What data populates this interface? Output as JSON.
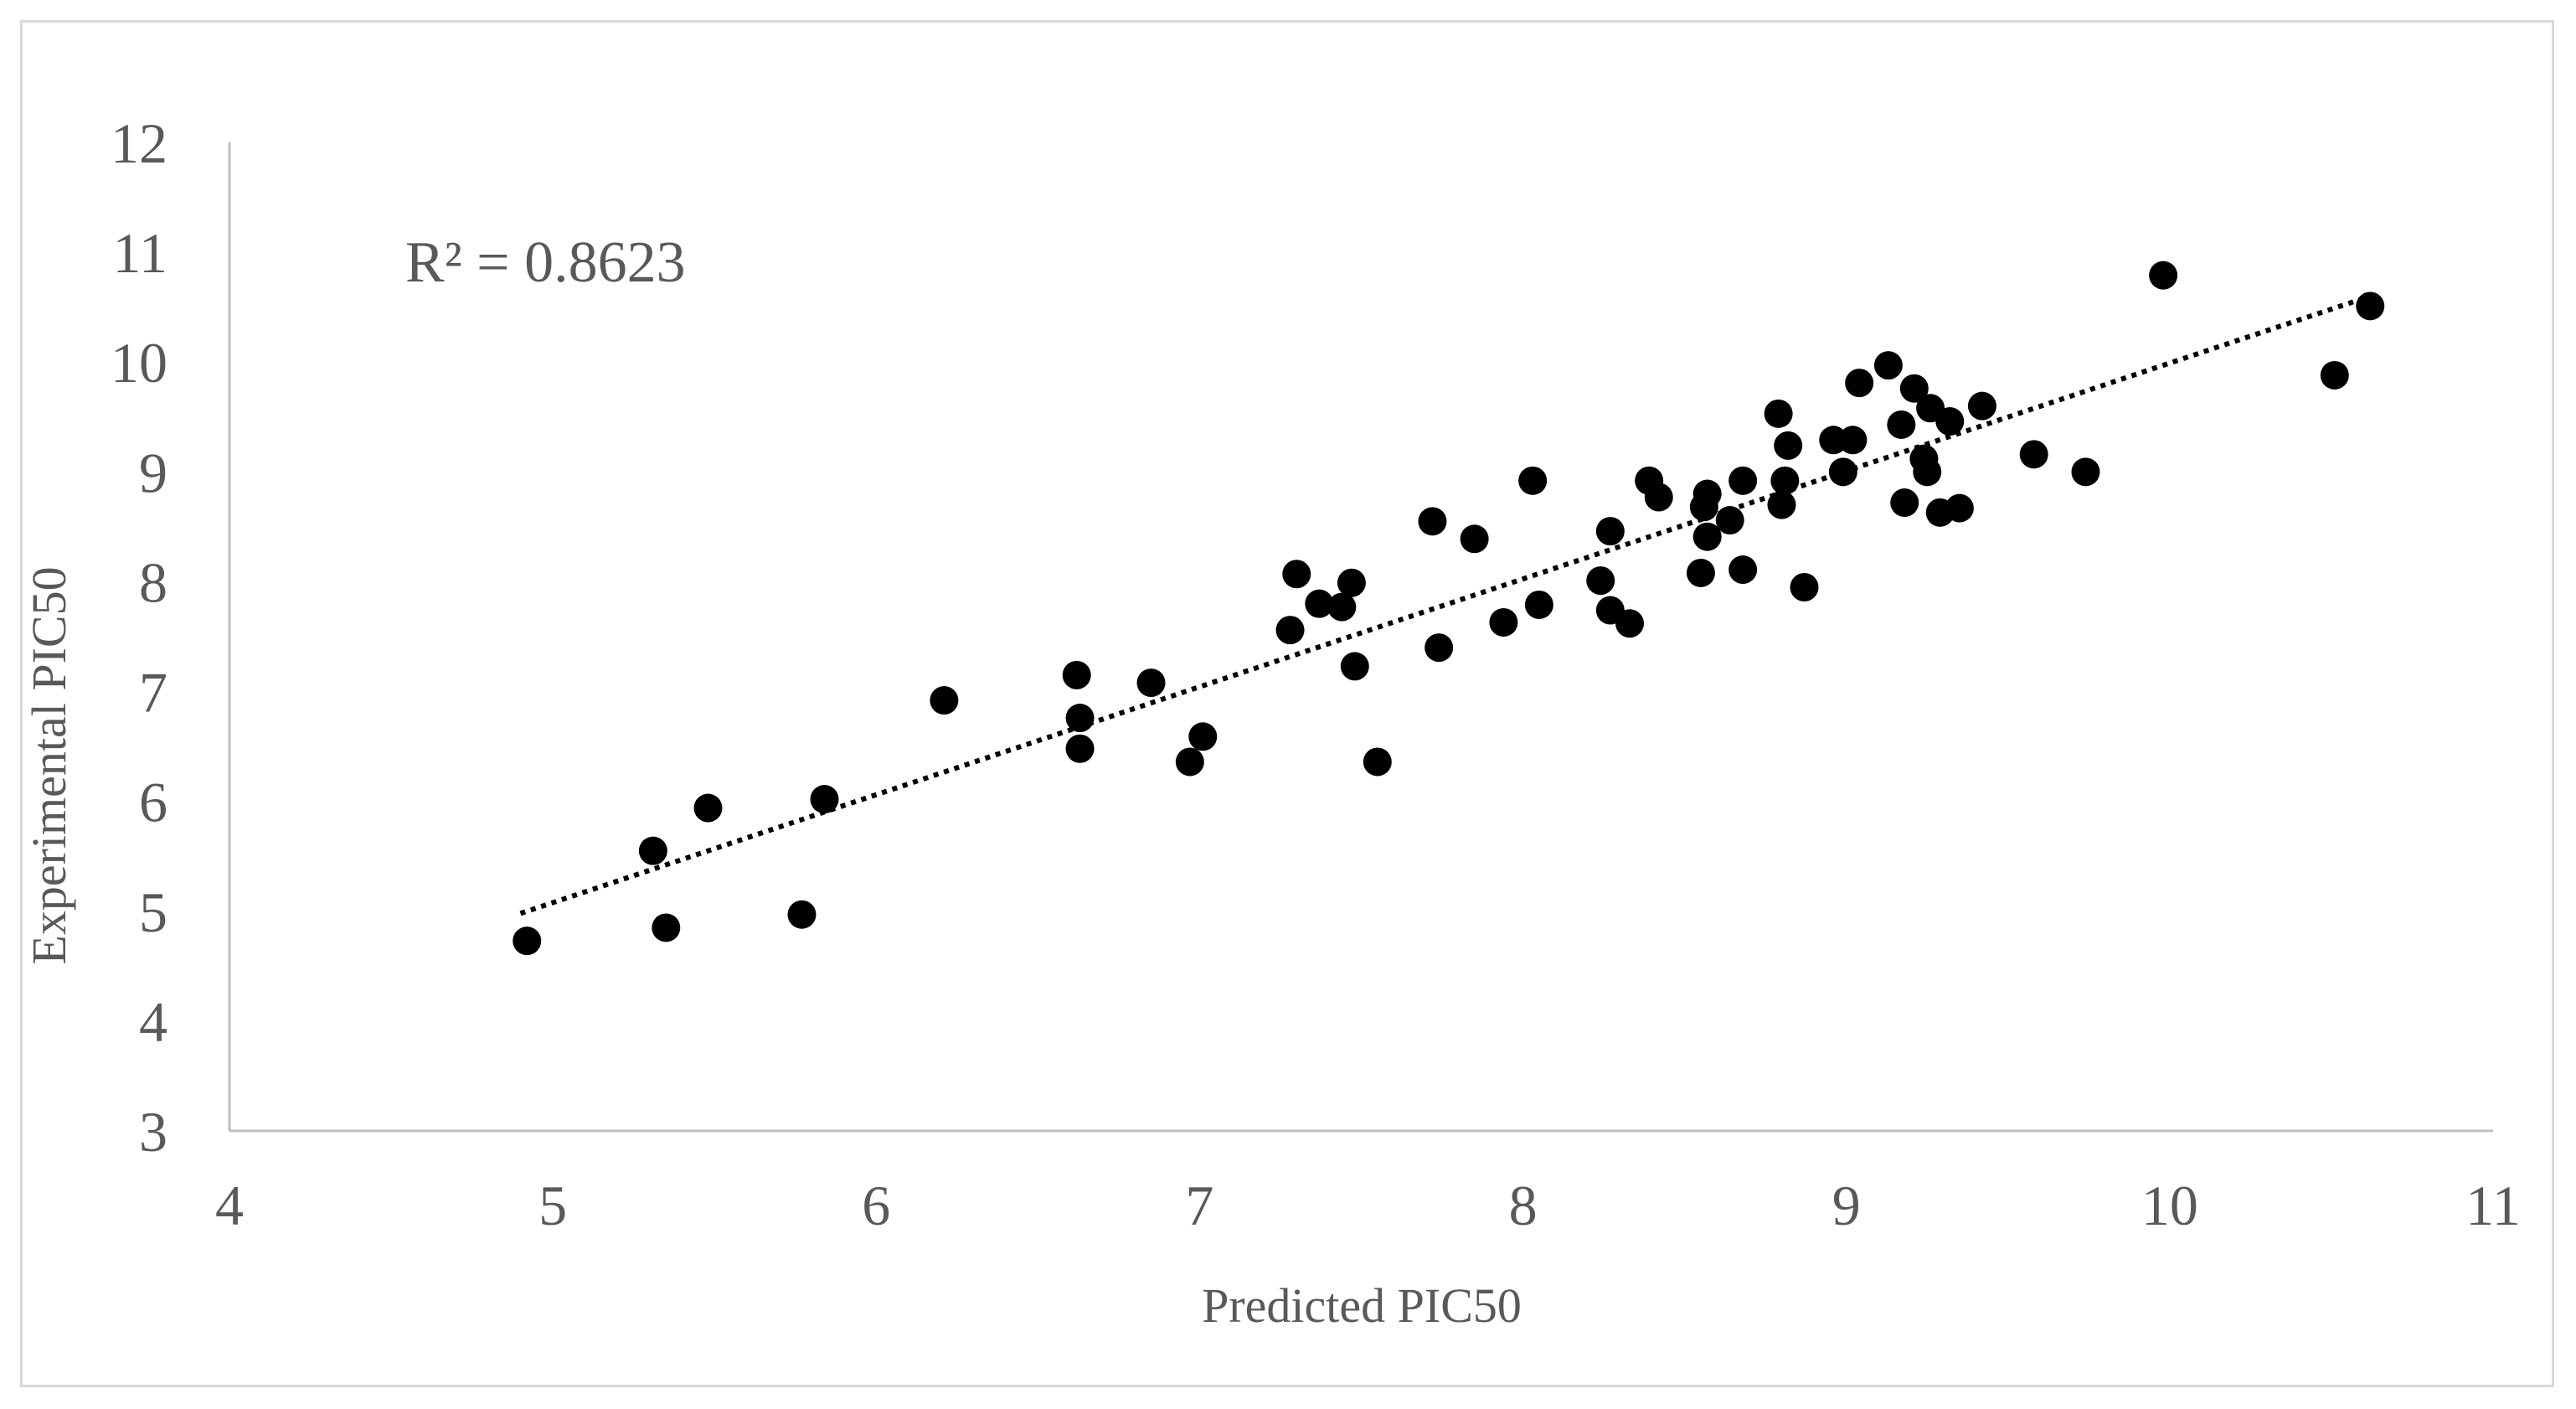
{
  "chart_data": {
    "type": "scatter",
    "xlabel": "Predicted PIC50",
    "ylabel": "Experimental  PIC50",
    "xlim": [
      4,
      11
    ],
    "ylim": [
      3,
      12
    ],
    "x_ticks": [
      "4",
      "5",
      "6",
      "7",
      "8",
      "9",
      "10",
      "11"
    ],
    "y_ticks": [
      "3",
      "4",
      "5",
      "6",
      "7",
      "8",
      "9",
      "10",
      "11",
      "12"
    ],
    "grid": false,
    "legend": "none",
    "annotation": "R² = 0.8623",
    "point_color": "#000000",
    "trendline": {
      "style": "dotted",
      "color": "#000000",
      "x_start": 4.9,
      "x_end": 10.62,
      "y_start": 4.98,
      "y_end": 10.6
    },
    "series": [
      {
        "points": [
          [
            4.92,
            4.73
          ],
          [
            5.31,
            5.55
          ],
          [
            5.35,
            4.85
          ],
          [
            5.48,
            5.94
          ],
          [
            5.77,
            4.97
          ],
          [
            5.84,
            6.02
          ],
          [
            6.21,
            6.92
          ],
          [
            6.62,
            7.15
          ],
          [
            6.63,
            6.76
          ],
          [
            6.63,
            6.48
          ],
          [
            6.85,
            7.08
          ],
          [
            6.97,
            6.36
          ],
          [
            7.01,
            6.59
          ],
          [
            7.28,
            7.56
          ],
          [
            7.3,
            8.07
          ],
          [
            7.37,
            7.8
          ],
          [
            7.44,
            7.77
          ],
          [
            7.47,
            7.99
          ],
          [
            7.48,
            7.23
          ],
          [
            7.55,
            6.36
          ],
          [
            7.72,
            8.55
          ],
          [
            7.74,
            7.4
          ],
          [
            7.85,
            8.39
          ],
          [
            7.94,
            7.63
          ],
          [
            8.03,
            8.92
          ],
          [
            8.05,
            7.79
          ],
          [
            8.24,
            8.01
          ],
          [
            8.27,
            8.46
          ],
          [
            8.27,
            7.74
          ],
          [
            8.33,
            7.62
          ],
          [
            8.39,
            8.92
          ],
          [
            8.42,
            8.77
          ],
          [
            8.55,
            8.08
          ],
          [
            8.56,
            8.68
          ],
          [
            8.57,
            8.8
          ],
          [
            8.57,
            8.41
          ],
          [
            8.64,
            8.56
          ],
          [
            8.68,
            8.11
          ],
          [
            8.68,
            8.92
          ],
          [
            8.79,
            9.53
          ],
          [
            8.8,
            8.7
          ],
          [
            8.81,
            8.92
          ],
          [
            8.82,
            9.24
          ],
          [
            8.87,
            7.95
          ],
          [
            8.96,
            9.29
          ],
          [
            8.99,
            9.0
          ],
          [
            9.02,
            9.29
          ],
          [
            9.04,
            9.81
          ],
          [
            9.13,
            9.97
          ],
          [
            9.17,
            9.43
          ],
          [
            9.18,
            8.72
          ],
          [
            9.21,
            9.76
          ],
          [
            9.24,
            9.12
          ],
          [
            9.25,
            9.0
          ],
          [
            9.26,
            9.58
          ],
          [
            9.29,
            8.63
          ],
          [
            9.32,
            9.46
          ],
          [
            9.35,
            8.67
          ],
          [
            9.42,
            9.6
          ],
          [
            9.58,
            9.16
          ],
          [
            9.74,
            9.0
          ],
          [
            9.98,
            10.79
          ],
          [
            10.51,
            9.88
          ],
          [
            10.62,
            10.51
          ]
        ]
      }
    ]
  }
}
